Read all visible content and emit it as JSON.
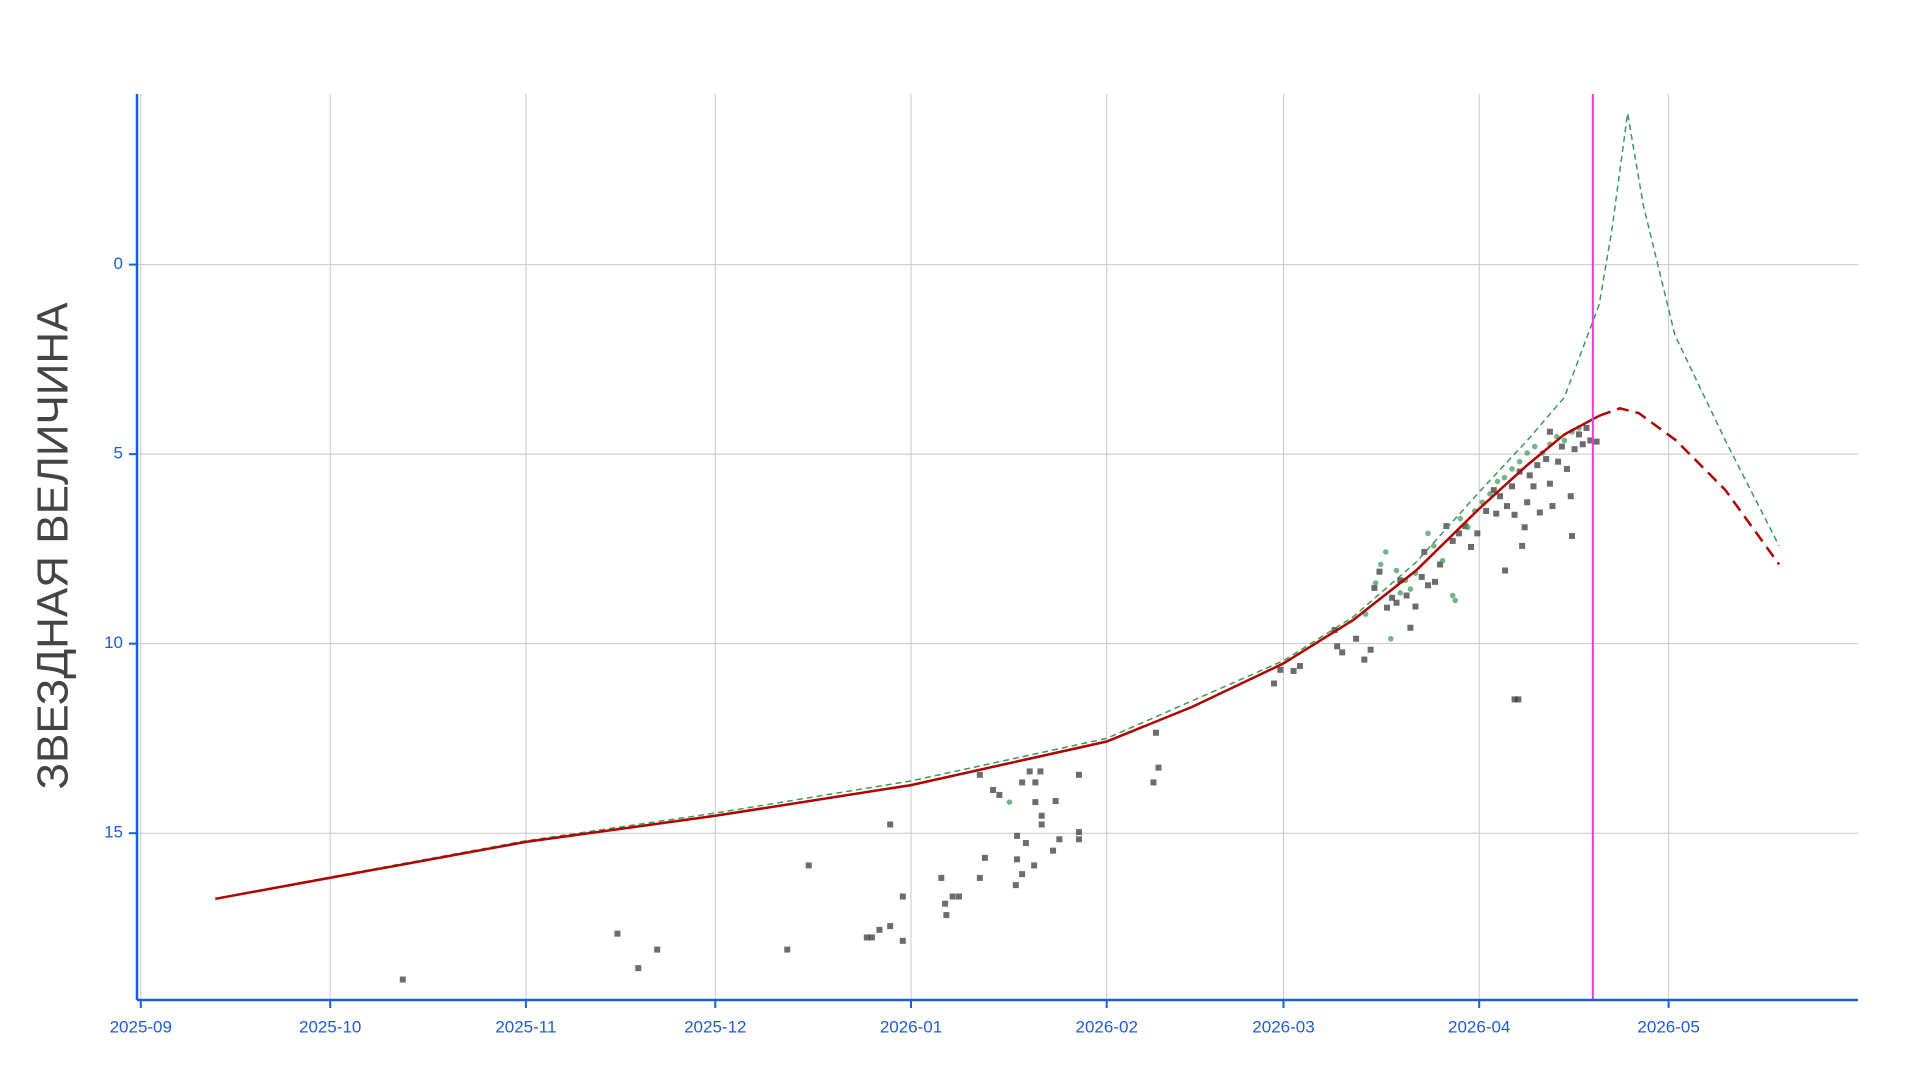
{
  "chart_data": {
    "type": "scatter",
    "y_label": "ЗВЕЗДНАЯ ВЕЛИЧИНА",
    "xlim": [
      -0.6,
      272
    ],
    "ylim": [
      -4.5,
      19.4
    ],
    "y_inverted": true,
    "grid": true,
    "xticks": [
      {
        "value": 0,
        "label": "2025-09"
      },
      {
        "value": 30,
        "label": "2025-10"
      },
      {
        "value": 61,
        "label": "2025-11"
      },
      {
        "value": 91,
        "label": "2025-12"
      },
      {
        "value": 122,
        "label": "2026-01"
      },
      {
        "value": 153,
        "label": "2026-02"
      },
      {
        "value": 181,
        "label": "2026-03"
      },
      {
        "value": 212,
        "label": "2026-04"
      },
      {
        "value": 242,
        "label": "2026-05"
      }
    ],
    "yticks": [
      0,
      5,
      10,
      15
    ],
    "vline": {
      "x": 230,
      "color": "#e040e0"
    },
    "series": [
      {
        "kind": "scatter",
        "marker": "square",
        "color": "#333333",
        "x": [
          41.5,
          75.5,
          78.8,
          81.8,
          102.4,
          105.8,
          115,
          115.8,
          117,
          118.7,
          118.7,
          120.7,
          120.7,
          126.8,
          127.4,
          127.6,
          128.6,
          129.6,
          132.9,
          132.9,
          133.7,
          135,
          136,
          138.6,
          138.8,
          138.8,
          139.6,
          139.6,
          140.2,
          140.8,
          141.5,
          141.7,
          141.7,
          142.5,
          142.7,
          142.7,
          144.5,
          144.9,
          145.5,
          148.6,
          148.6,
          148.6,
          160.4,
          160.8,
          161.2,
          179.5,
          180.5,
          182.6,
          183.6,
          189.1,
          189.5,
          190.3,
          192.5,
          193.8,
          194.8,
          195.4,
          196.2,
          197.4,
          198.2,
          198.9,
          199.5,
          200.5,
          201.1,
          201.9,
          202.9,
          203.3,
          203.9,
          205,
          205.8,
          206.8,
          207.8,
          208.8,
          209.8,
          210.7,
          211.7,
          213.1,
          214.3,
          214.7,
          215.3,
          216.1,
          216.4,
          217.2,
          217.6,
          218.2,
          217.6,
          218.4,
          218.8,
          219.2,
          219.6,
          220,
          220.6,
          221.2,
          221.6,
          222.6,
          223.2,
          223.6,
          224.5,
          225.1,
          225.9,
          226.5,
          226.7,
          227.1,
          227.8,
          228.4,
          229,
          229.6,
          230.6,
          223.2
        ],
        "values": [
          18.86,
          17.65,
          18.56,
          18.07,
          18.07,
          15.85,
          17.75,
          17.75,
          17.55,
          17.45,
          14.77,
          17.84,
          16.67,
          16.18,
          16.86,
          17.16,
          16.67,
          16.67,
          16.18,
          13.46,
          15.65,
          13.86,
          13.99,
          16.37,
          15.69,
          15.07,
          13.66,
          16.08,
          15.26,
          13.37,
          15.85,
          14.18,
          13.66,
          13.37,
          14.54,
          14.77,
          15.46,
          14.15,
          15.16,
          13.46,
          14.97,
          15.16,
          13.66,
          12.35,
          13.27,
          11.05,
          10.69,
          10.72,
          10.59,
          9.64,
          10.07,
          10.23,
          9.87,
          10.42,
          10.16,
          8.53,
          8.1,
          9.05,
          8.79,
          8.92,
          8.33,
          8.73,
          9.58,
          9.02,
          8.24,
          7.58,
          8.46,
          8.37,
          7.91,
          6.9,
          7.29,
          7.09,
          6.9,
          7.45,
          7.09,
          6.5,
          5.95,
          6.57,
          6.11,
          8.07,
          6.37,
          5.85,
          11.47,
          11.47,
          6.6,
          5.46,
          7.42,
          6.93,
          6.27,
          5.56,
          5.85,
          5.29,
          6.54,
          5.13,
          5.78,
          6.37,
          5.2,
          4.8,
          5.39,
          6.11,
          7.16,
          4.87,
          4.48,
          4.74,
          4.31,
          4.64,
          4.67,
          4.41
        ]
      },
      {
        "kind": "scatter",
        "marker": "circle",
        "color": "#3a9a5a",
        "x": [
          137.6,
          194,
          195.6,
          196.4,
          197.2,
          198,
          198.9,
          199.5,
          200.3,
          201.1,
          201.9,
          203.9,
          204.8,
          206.2,
          207.8,
          208.2,
          209,
          210.2,
          211.3,
          212.5,
          213.7,
          214.9,
          216,
          217.2,
          218.4,
          219.6,
          220.8,
          222,
          223.2,
          224.3,
          225.5,
          226.7,
          227.8
        ],
        "values": [
          14.18,
          9.22,
          8.4,
          7.91,
          7.58,
          9.87,
          8.07,
          8.66,
          8.33,
          8.56,
          8.14,
          7.09,
          7.42,
          7.81,
          8.73,
          8.86,
          6.7,
          6.93,
          6.5,
          6.27,
          6.05,
          5.72,
          5.62,
          5.39,
          5.2,
          4.97,
          4.8,
          4.97,
          4.74,
          4.54,
          4.64,
          4.41,
          4.31
        ]
      },
      {
        "kind": "line",
        "dash": "6 4",
        "width": 1.5,
        "color": "#3a9a5a",
        "x": [
          11.8,
          29.9,
          61,
          91,
          122,
          153,
          181,
          192,
          202,
          212,
          219.6,
          225.5,
          231,
          233,
          235.5,
          238,
          243,
          251,
          259.5
        ],
        "values": [
          16.73,
          16.16,
          15.2,
          14.47,
          13.62,
          12.5,
          10.45,
          9.3,
          7.85,
          6.0,
          4.64,
          3.5,
          1.05,
          -0.9,
          -3.99,
          -1.57,
          1.86,
          4.64,
          7.42
        ]
      },
      {
        "kind": "line",
        "dash": "",
        "width": 2.5,
        "color": "#b00000",
        "x": [
          11.8,
          29.9,
          61,
          91,
          122,
          153,
          166.5,
          181,
          192,
          202,
          212,
          219.6,
          225.5,
          231
        ],
        "values": [
          16.73,
          16.18,
          15.23,
          14.54,
          13.73,
          12.58,
          11.67,
          10.52,
          9.38,
          8.07,
          6.44,
          5.29,
          4.48,
          3.99
        ]
      },
      {
        "kind": "line",
        "dash": "12 7",
        "width": 2.5,
        "color": "#b00000",
        "x": [
          231,
          234.3,
          237.3,
          243.2,
          251,
          259.5
        ],
        "values": [
          3.99,
          3.79,
          3.92,
          4.64,
          5.95,
          7.91
        ]
      }
    ]
  }
}
